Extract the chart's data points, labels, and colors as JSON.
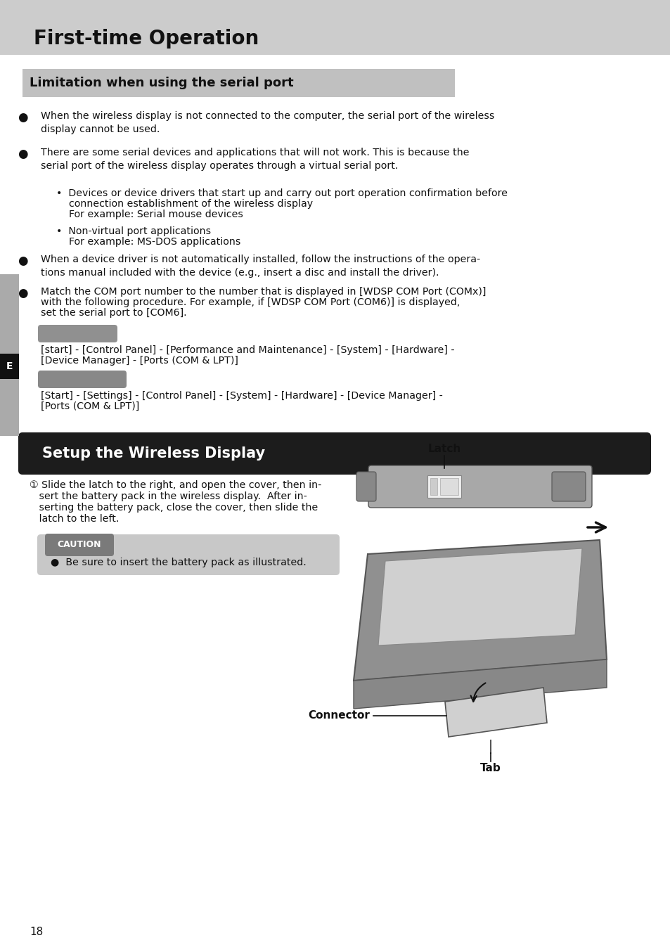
{
  "bg_color": "#ffffff",
  "header_bg": "#cccccc",
  "title_text": "First-time Operation",
  "section1_title": "Limitation when using the serial port",
  "section1_bg": "#c0c0c0",
  "section2_title": "Setup the Wireless Display",
  "section2_bg": "#1c1c1c",
  "sidebar_color": "#aaaaaa",
  "sidebar_label": "E",
  "bullet1": "When the wireless display is not connected to the computer, the serial port of the wireless\ndisplay cannot be used.",
  "bullet2": "There are some serial devices and applications that will not work. This is because the\nserial port of the wireless display operates through a virtual serial port.",
  "sub1_line1": "•  Devices or device drivers that start up and carry out port operation confirmation before",
  "sub1_line2": "    connection establishment of the wireless display",
  "sub1_line3": "    For example: Serial mouse devices",
  "sub2_line1": "•  Non-virtual port applications",
  "sub2_line2": "    For example: MS-DOS applications",
  "bullet3": "When a device driver is not automatically installed, follow the instructions of the opera-\ntions manual included with the device (e.g., insert a disc and install the driver).",
  "bullet4_line1": "Match the COM port number to the number that is displayed in [WDSP COM Port (COMx)]",
  "bullet4_line2": "with the following procedure. For example, if [WDSP COM Port (COM6)] is displayed,",
  "bullet4_line3": "set the serial port to [COM6].",
  "xp_text1": "[start] - [Control Panel] - [Performance and Maintenance] - [System] - [Hardware] -",
  "xp_text2": "[Device Manager] - [Ports (COM & LPT)]",
  "w2k_text1": "[Start] - [Settings] - [Control Panel] - [System] - [Hardware] - [Device Manager] -",
  "w2k_text2": "[Ports (COM & LPT)]",
  "step1_line1": "① Slide the latch to the right, and open the cover, then in-",
  "step1_line2": "   sert the battery pack in the wireless display.  After in-",
  "step1_line3": "   serting the battery pack, close the cover, then slide the",
  "step1_line4": "   latch to the left.",
  "caution_label": "CAUTION",
  "caution_text": "●  Be sure to insert the battery pack as illustrated.",
  "latch_label": "Latch",
  "connector_label": "Connector",
  "tab_label": "Tab",
  "page_num": "18",
  "tag_color": "#909090",
  "tag_color2": "#888888"
}
